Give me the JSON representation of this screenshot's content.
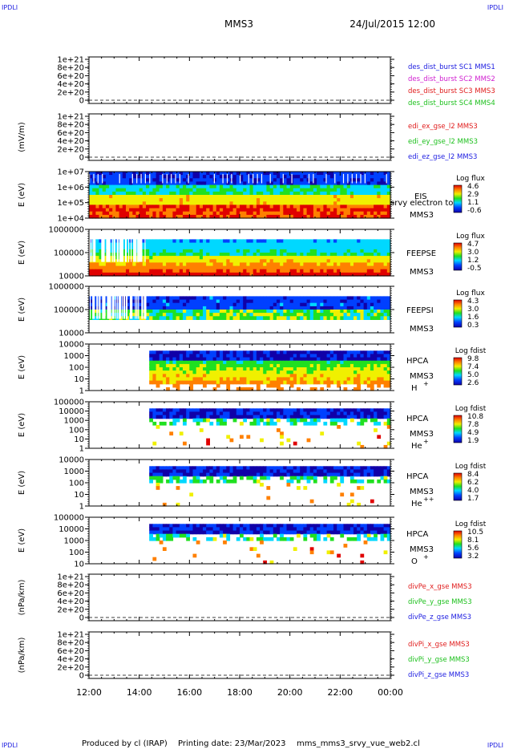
{
  "header": {
    "corner_left_top": "IPDLI",
    "corner_right_top": "IPDLI",
    "corner_left_bottom": "IPDLI",
    "corner_right_bottom": "IPDLI",
    "title": "MMS3",
    "datetime": "24/Jul/2015 12:00"
  },
  "footer": {
    "produced": "Produced by cl (IRAP)",
    "printed": "Printing date: 23/Mar/2023",
    "file": "mms_mms3_srvy_vue_web2.cl"
  },
  "colors": {
    "blue": "#1c1ce0",
    "magenta": "#d020d0",
    "red": "#e01c1c",
    "green": "#1cc01c"
  },
  "chart_data": [
    {
      "type": "line",
      "ylabel": "",
      "yticks": [
        "1e+21",
        "8e+20",
        "6e+20",
        "4e+20",
        "2e+20",
        "0"
      ],
      "legend": [
        {
          "label": "des_dist_burst SC1 MMS1",
          "color": "#1c1ce0"
        },
        {
          "label": "des_dist_burst SC2 MMS2",
          "color": "#d020d0"
        },
        {
          "label": "des_dist_burst SC3 MMS3",
          "color": "#e01c1c"
        },
        {
          "label": "des_dist_burst SC4 MMS4",
          "color": "#1cc01c"
        }
      ]
    },
    {
      "type": "line",
      "ylabel": "(mV/m)",
      "yticks": [
        "1e+21",
        "8e+20",
        "6e+20",
        "4e+20",
        "2e+20",
        "0"
      ],
      "legend": [
        {
          "label": "edi_ex_gse_l2 MMS3",
          "color": "#e01c1c"
        },
        {
          "label": "edi_ey_gse_l2 MMS3",
          "color": "#1cc01c"
        },
        {
          "label": "edi_ez_gse_l2 MMS3",
          "color": "#1c1ce0"
        }
      ]
    },
    {
      "type": "heatmap",
      "ylabel": "E (eV)",
      "yticks": [
        "1e+07",
        "1e+06",
        "1e+05",
        "1e+04"
      ],
      "instrument": "EIS",
      "overlay": "srvy electron to",
      "spacecraft": "MMS3",
      "species": "",
      "cbar_title": "Log flux",
      "cbar_ticks": [
        "4.6",
        "2.9",
        "1.1",
        "-0.6"
      ]
    },
    {
      "type": "heatmap",
      "ylabel": "E (eV)",
      "yticks": [
        "1000000",
        "100000",
        "10000"
      ],
      "instrument": "FEEPSE",
      "spacecraft": "MMS3",
      "species": "",
      "cbar_title": "Log flux",
      "cbar_ticks": [
        "4.7",
        "3.0",
        "1.2",
        "-0.5"
      ]
    },
    {
      "type": "heatmap",
      "ylabel": "E (eV)",
      "yticks": [
        "1000000",
        "100000",
        "10000"
      ],
      "instrument": "FEEPSI",
      "spacecraft": "MMS3",
      "species": "",
      "cbar_title": "Log flux",
      "cbar_ticks": [
        "4.3",
        "3.0",
        "1.6",
        "0.3"
      ]
    },
    {
      "type": "heatmap",
      "ylabel": "E (eV)",
      "yticks": [
        "10000",
        "1000",
        "100",
        "10",
        "1"
      ],
      "instrument": "HPCA",
      "spacecraft": "MMS3",
      "species": "H",
      "charge": "+",
      "cbar_title": "Log fdist",
      "cbar_ticks": [
        "9.8",
        "7.4",
        "5.0",
        "2.6"
      ]
    },
    {
      "type": "heatmap",
      "ylabel": "E (eV)",
      "yticks": [
        "100000",
        "10000",
        "1000",
        "100",
        "10",
        "1"
      ],
      "instrument": "HPCA",
      "spacecraft": "MMS3",
      "species": "He",
      "charge": "+",
      "cbar_title": "Log fdist",
      "cbar_ticks": [
        "10.8",
        "7.8",
        "4.9",
        "1.9"
      ]
    },
    {
      "type": "heatmap",
      "ylabel": "E (eV)",
      "yticks": [
        "10000",
        "1000",
        "100",
        "10",
        "1"
      ],
      "instrument": "HPCA",
      "spacecraft": "MMS3",
      "species": "He",
      "charge": "++",
      "cbar_title": "Log fdist",
      "cbar_ticks": [
        "8.4",
        "6.2",
        "4.0",
        "1.7"
      ]
    },
    {
      "type": "heatmap",
      "ylabel": "E (eV)",
      "yticks": [
        "100000",
        "10000",
        "1000",
        "100",
        "10"
      ],
      "instrument": "HPCA",
      "spacecraft": "MMS3",
      "species": "O",
      "charge": "+",
      "cbar_title": "Log fdist",
      "cbar_ticks": [
        "10.5",
        "8.1",
        "5.6",
        "3.2"
      ]
    },
    {
      "type": "line",
      "ylabel": "(nPa/km)",
      "yticks": [
        "1e+21",
        "8e+20",
        "6e+20",
        "4e+20",
        "2e+20",
        "0"
      ],
      "legend": [
        {
          "label": "divPe_x_gse MMS3",
          "color": "#e01c1c"
        },
        {
          "label": "divPe_y_gse MMS3",
          "color": "#1cc01c"
        },
        {
          "label": "divPe_z_gse MMS3",
          "color": "#1c1ce0"
        }
      ]
    },
    {
      "type": "line",
      "ylabel": "(nPa/km)",
      "yticks": [
        "1e+21",
        "8e+20",
        "6e+20",
        "4e+20",
        "2e+20",
        "0"
      ],
      "legend": [
        {
          "label": "divPi_x_gse MMS3",
          "color": "#e01c1c"
        },
        {
          "label": "divPi_y_gse MMS3",
          "color": "#1cc01c"
        },
        {
          "label": "divPi_z_gse MMS3",
          "color": "#1c1ce0"
        }
      ]
    }
  ],
  "xaxis": {
    "ticks": [
      "12:00",
      "14:00",
      "16:00",
      "18:00",
      "20:00",
      "22:00",
      "00:00"
    ]
  }
}
